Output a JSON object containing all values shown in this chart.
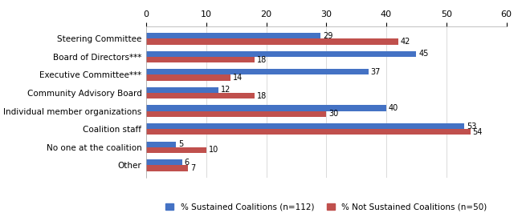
{
  "categories": [
    "Other",
    "No one at the coalition",
    "Coalition staff",
    "Individual member organizations",
    "Community Advisory Board",
    "Executive Committee***",
    "Board of Directors***",
    "Steering Committee"
  ],
  "sustained": [
    6,
    5,
    53,
    40,
    12,
    37,
    45,
    29
  ],
  "not_sustained": [
    7,
    10,
    54,
    30,
    18,
    14,
    18,
    42
  ],
  "sustained_color": "#4472C4",
  "not_sustained_color": "#C0504D",
  "xlim": [
    0,
    60
  ],
  "xticks": [
    0,
    10,
    20,
    30,
    40,
    50,
    60
  ],
  "legend_sustained": "% Sustained Coalitions (n=112)",
  "legend_not_sustained": "% Not Sustained Coalitions (n=50)",
  "bar_height": 0.32,
  "figsize": [
    6.5,
    2.71
  ],
  "dpi": 100
}
